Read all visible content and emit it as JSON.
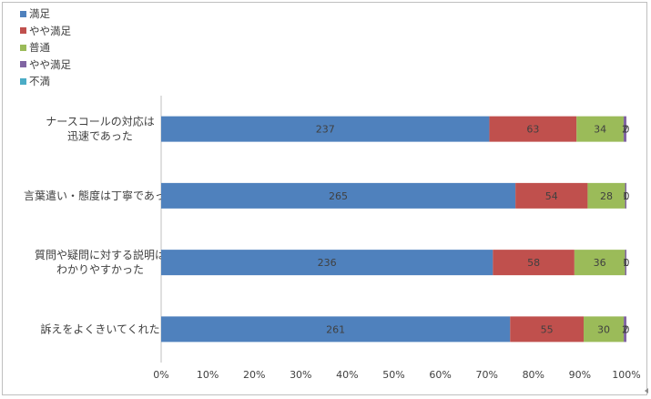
{
  "chart_data": {
    "type": "bar",
    "orientation": "horizontal",
    "stacked": "percent",
    "categories": [
      [
        "ナースコールの対応は",
        "迅速であった"
      ],
      [
        "言葉遣い・態度は丁寧であった"
      ],
      [
        "質問や疑問に対する説明は",
        "わかりやすかった"
      ],
      [
        "訴えをよくきいてくれた"
      ]
    ],
    "series": [
      {
        "name": "満足",
        "color": "#4f81bd",
        "values": [
          237,
          265,
          236,
          261
        ]
      },
      {
        "name": "やや満足",
        "color": "#c0504d",
        "values": [
          63,
          54,
          58,
          55
        ]
      },
      {
        "name": "普通",
        "color": "#9bbb59",
        "values": [
          34,
          28,
          36,
          30
        ]
      },
      {
        "name": "やや満足",
        "color": "#8064a2",
        "values": [
          2,
          1,
          1,
          2
        ]
      },
      {
        "name": "不満",
        "color": "#4bacc6",
        "values": [
          0,
          0,
          0,
          0
        ]
      }
    ],
    "x_ticks": [
      "0%",
      "10%",
      "20%",
      "30%",
      "40%",
      "50%",
      "60%",
      "70%",
      "80%",
      "90%",
      "100%"
    ],
    "xlim": [
      0,
      1
    ],
    "legend_position": "top-left",
    "grid": false
  }
}
